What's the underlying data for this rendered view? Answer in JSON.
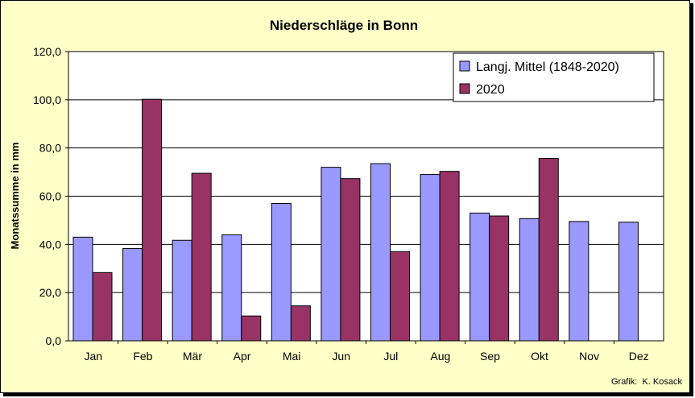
{
  "chart_data": {
    "type": "bar",
    "title": "Niederschläge in Bonn",
    "ylabel": "Monatssumme in mm",
    "xlabel": "",
    "ylim": [
      0,
      120
    ],
    "yticks": [
      "0,0",
      "20,0",
      "40,0",
      "60,0",
      "80,0",
      "100,0",
      "120,0"
    ],
    "categories": [
      "Jan",
      "Feb",
      "Mär",
      "Apr",
      "Mai",
      "Jun",
      "Jul",
      "Aug",
      "Sep",
      "Okt",
      "Nov",
      "Dez"
    ],
    "series": [
      {
        "name": "Langj. Mittel (1848-2020)",
        "color": "#9999ff",
        "values": [
          43.0,
          38.3,
          41.7,
          44.0,
          57.0,
          72.0,
          73.5,
          69.0,
          53.0,
          50.7,
          49.5,
          49.2
        ]
      },
      {
        "name": "2020",
        "color": "#993366",
        "values": [
          28.3,
          100.2,
          69.5,
          10.3,
          14.5,
          67.3,
          37.0,
          70.3,
          51.8,
          75.7,
          null,
          null
        ]
      }
    ],
    "grid": true,
    "legend": "top-right",
    "credit": "Grafik:  K. Kosack"
  }
}
